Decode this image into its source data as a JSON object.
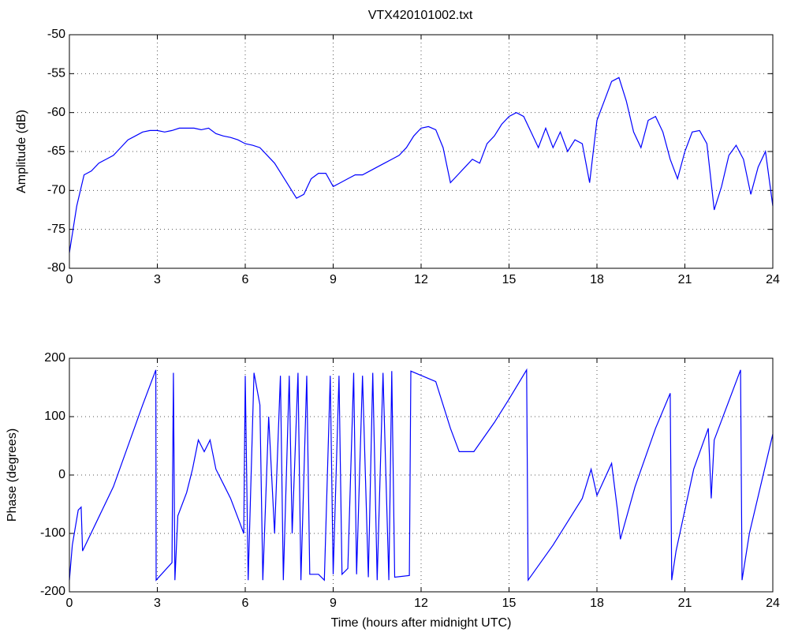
{
  "chart_data": [
    {
      "type": "line",
      "title": "VTX420101002.txt",
      "ylabel": "Amplitude (dB)",
      "color": "#0000ff",
      "grid": true,
      "xlim": [
        0,
        24
      ],
      "xticks": [
        0,
        3,
        6,
        9,
        12,
        15,
        18,
        21,
        24
      ],
      "ylim": [
        -80,
        -50
      ],
      "yticks": [
        -80,
        -75,
        -70,
        -65,
        -60,
        -55,
        -50
      ],
      "x": [
        0,
        0.25,
        0.5,
        0.75,
        1,
        1.25,
        1.5,
        1.75,
        2,
        2.25,
        2.5,
        2.75,
        3,
        3.25,
        3.5,
        3.75,
        4,
        4.25,
        4.5,
        4.75,
        5,
        5.25,
        5.5,
        5.75,
        6,
        6.25,
        6.5,
        6.75,
        7,
        7.25,
        7.5,
        7.75,
        8,
        8.25,
        8.5,
        8.75,
        9,
        9.25,
        9.5,
        9.75,
        10,
        10.25,
        10.5,
        10.75,
        11,
        11.25,
        11.5,
        11.75,
        12,
        12.25,
        12.5,
        12.75,
        13,
        13.25,
        13.5,
        13.75,
        14,
        14.25,
        14.5,
        14.75,
        15,
        15.25,
        15.5,
        15.75,
        16,
        16.25,
        16.5,
        16.75,
        17,
        17.25,
        17.5,
        17.75,
        18,
        18.25,
        18.5,
        18.75,
        19,
        19.25,
        19.5,
        19.75,
        20,
        20.25,
        20.5,
        20.75,
        21,
        21.25,
        21.5,
        21.75,
        22,
        22.25,
        22.5,
        22.75,
        23,
        23.25,
        23.5,
        23.75,
        24
      ],
      "values": [
        -78,
        -72,
        -68,
        -67.5,
        -66.5,
        -66,
        -65.5,
        -64.5,
        -63.5,
        -63,
        -62.5,
        -62.3,
        -62.3,
        -62.5,
        -62.3,
        -62,
        -62,
        -62,
        -62.2,
        -62,
        -62.7,
        -63,
        -63.2,
        -63.5,
        -64,
        -64.2,
        -64.5,
        -65.5,
        -66.5,
        -68,
        -69.5,
        -71,
        -70.5,
        -68.5,
        -67.8,
        -67.8,
        -69.5,
        -69,
        -68.5,
        -68,
        -68,
        -67.5,
        -67,
        -66.5,
        -66,
        -65.5,
        -64.5,
        -63,
        -62,
        -61.8,
        -62.2,
        -64.5,
        -69,
        -68,
        -67,
        -66,
        -66.5,
        -64,
        -63,
        -61.5,
        -60.5,
        -60,
        -60.5,
        -62.5,
        -64.5,
        -62,
        -64.5,
        -62.5,
        -65,
        -63.5,
        -64,
        -69,
        -61,
        -58.5,
        -56,
        -55.5,
        -58.5,
        -62.5,
        -64.5,
        -61,
        -60.5,
        -62.5,
        -66,
        -68.5,
        -65,
        -62.5,
        -62.3,
        -64,
        -72.5,
        -69.5,
        -65.5,
        -64.2,
        -66,
        -70.5,
        -67,
        -65,
        -72
      ]
    },
    {
      "type": "line",
      "xlabel": "Time (hours after midnight UTC)",
      "ylabel": "Phase (degrees)",
      "color": "#0000ff",
      "grid": true,
      "xlim": [
        0,
        24
      ],
      "xticks": [
        0,
        3,
        6,
        9,
        12,
        15,
        18,
        21,
        24
      ],
      "ylim": [
        -200,
        200
      ],
      "yticks": [
        -200,
        -100,
        0,
        100,
        200
      ],
      "x": [
        0,
        0.1,
        0.3,
        0.4,
        0.45,
        1.5,
        2.5,
        2.95,
        2.96,
        3.5,
        3.55,
        3.6,
        3.7,
        4.0,
        4.2,
        4.4,
        4.6,
        4.8,
        5.0,
        5.3,
        5.5,
        5.8,
        5.95,
        6.0,
        6.1,
        6.3,
        6.5,
        6.6,
        6.8,
        7.0,
        7.2,
        7.3,
        7.5,
        7.6,
        7.8,
        7.9,
        8.1,
        8.2,
        8.5,
        8.7,
        8.9,
        9.0,
        9.2,
        9.3,
        9.5,
        9.7,
        9.8,
        10.0,
        10.2,
        10.35,
        10.5,
        10.7,
        10.9,
        11.0,
        11.1,
        11.6,
        11.65,
        12.5,
        13.0,
        13.3,
        13.8,
        14.5,
        15.0,
        15.6,
        15.65,
        16.5,
        17.5,
        17.8,
        18.0,
        18.5,
        18.7,
        18.8,
        19.3,
        20.0,
        20.5,
        20.55,
        20.7,
        21.3,
        21.8,
        21.9,
        22.0,
        22.9,
        22.95,
        23.2,
        24
      ],
      "values": [
        -180,
        -120,
        -60,
        -55,
        -130,
        -20,
        120,
        180,
        -180,
        -150,
        175,
        -180,
        -70,
        -30,
        10,
        60,
        40,
        60,
        10,
        -20,
        -40,
        -80,
        -100,
        170,
        -180,
        175,
        120,
        -180,
        100,
        -100,
        170,
        -180,
        170,
        -100,
        175,
        -180,
        170,
        -170,
        -170,
        -180,
        170,
        -170,
        170,
        -170,
        -160,
        175,
        -170,
        170,
        -175,
        175,
        -180,
        175,
        -180,
        178,
        -175,
        -172,
        178,
        160,
        80,
        40,
        40,
        90,
        130,
        180,
        -180,
        -120,
        -40,
        10,
        -35,
        20,
        -60,
        -110,
        -20,
        80,
        140,
        -180,
        -130,
        10,
        80,
        -40,
        60,
        180,
        -180,
        -100,
        70
      ]
    }
  ]
}
